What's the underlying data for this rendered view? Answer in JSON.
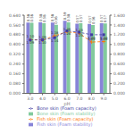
{
  "chart_data": {
    "type": "bar",
    "categories": [
      "3.0",
      "4.0",
      "5.0",
      "6.0",
      "7.0",
      "8.0",
      "9.0"
    ],
    "xlabel": "pH",
    "ylim": [
      0.0,
      0.64
    ],
    "yticks": [
      {
        "value": 0.0,
        "label": "0.000"
      },
      {
        "value": 0.08,
        "label": "0.080"
      },
      {
        "value": 0.16,
        "label": "0.160"
      },
      {
        "value": 0.24,
        "label": "0.240"
      },
      {
        "value": 0.32,
        "label": "0.320"
      },
      {
        "value": 0.4,
        "label": "0.400"
      },
      {
        "value": 0.48,
        "label": "0.480"
      },
      {
        "value": 0.56,
        "label": "0.560"
      },
      {
        "value": 0.64,
        "label": "0.640"
      }
    ],
    "y2lim": [
      0.0,
      1.6
    ],
    "y2ticks": [
      {
        "value": 0.0,
        "label": "0.000"
      },
      {
        "value": 0.2,
        "label": "0.200"
      },
      {
        "value": 0.4,
        "label": "0.400"
      },
      {
        "value": 0.6,
        "label": "0.600"
      },
      {
        "value": 0.8,
        "label": "0.800"
      },
      {
        "value": 1.0,
        "label": "1.000"
      },
      {
        "value": 1.2,
        "label": "1.200"
      },
      {
        "value": 1.4,
        "label": "1.400"
      },
      {
        "value": 1.6,
        "label": "1.600"
      }
    ],
    "legend": "bottom",
    "data_labels": true,
    "series": [
      {
        "name": "Fish skin (Foam stability)",
        "type": "bar",
        "values": [
          0.58,
          0.582,
          0.58,
          0.595,
          0.57,
          0.568,
          0.575
        ],
        "value_labels": [
          "0.58",
          "0.58",
          "0.58",
          "0.59",
          "0.57",
          "0.57",
          "0.57"
        ]
      },
      {
        "name": "Bone skin (Foam stability)",
        "type": "bar",
        "values": [
          0.578,
          0.575,
          0.562,
          0.582,
          0.575,
          0.56,
          0.572
        ],
        "value_labels": [
          "0.58",
          "0.58",
          "0.56",
          "0.58",
          "0.57",
          "0.56",
          "0.57"
        ]
      },
      {
        "name": "Fish skin (Foam capacity)",
        "type": "line",
        "axis": "y2",
        "marker": "plus",
        "line_style": "dashed",
        "values": [
          1.1,
          1.092,
          1.18,
          1.26,
          1.23,
          1.05,
          1.06
        ],
        "value_labels": [
          "1.10",
          "1.09",
          "1.18",
          "1.26",
          "1.23",
          "1.05",
          "1.06"
        ]
      },
      {
        "name": "Bone skin (Foam capacity)",
        "type": "line",
        "axis": "y2",
        "marker": "square",
        "line_style": "dashed",
        "values": [
          1.092,
          1.095,
          1.14,
          1.28,
          1.25,
          1.2,
          1.2
        ],
        "value_labels": [
          "1.09",
          "1.10",
          "1.14",
          "1.28",
          "1.25",
          "1.20",
          "1.20"
        ]
      }
    ]
  }
}
